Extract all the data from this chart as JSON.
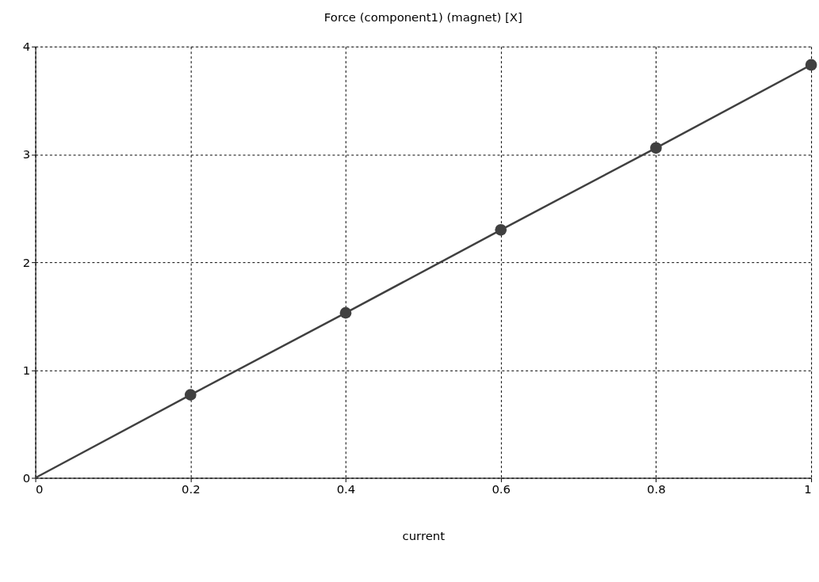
{
  "chart_data": {
    "type": "line",
    "title": "Force (component1) (magnet) [X]",
    "xlabel": "current",
    "series": [
      {
        "color": "#404040",
        "x": [
          0,
          0.2,
          0.4,
          0.6,
          0.8,
          1
        ],
        "values": [
          0,
          0.77,
          1.53,
          2.3,
          3.06,
          3.83
        ],
        "marker": "none"
      },
      {
        "type": "scatter",
        "color": "#404040",
        "x": [
          0.2,
          0.4,
          0.6,
          0.8,
          1
        ],
        "values": [
          0.77,
          1.53,
          2.3,
          3.06,
          3.83
        ],
        "marker": "circle"
      }
    ],
    "xlim": [
      0,
      1
    ],
    "ylim": [
      0,
      4
    ],
    "xticks": [
      0,
      0.2,
      0.4,
      0.6,
      0.8,
      1
    ],
    "yticks": [
      0,
      1,
      2,
      3,
      4
    ],
    "grid": true,
    "line_style": "solid"
  }
}
